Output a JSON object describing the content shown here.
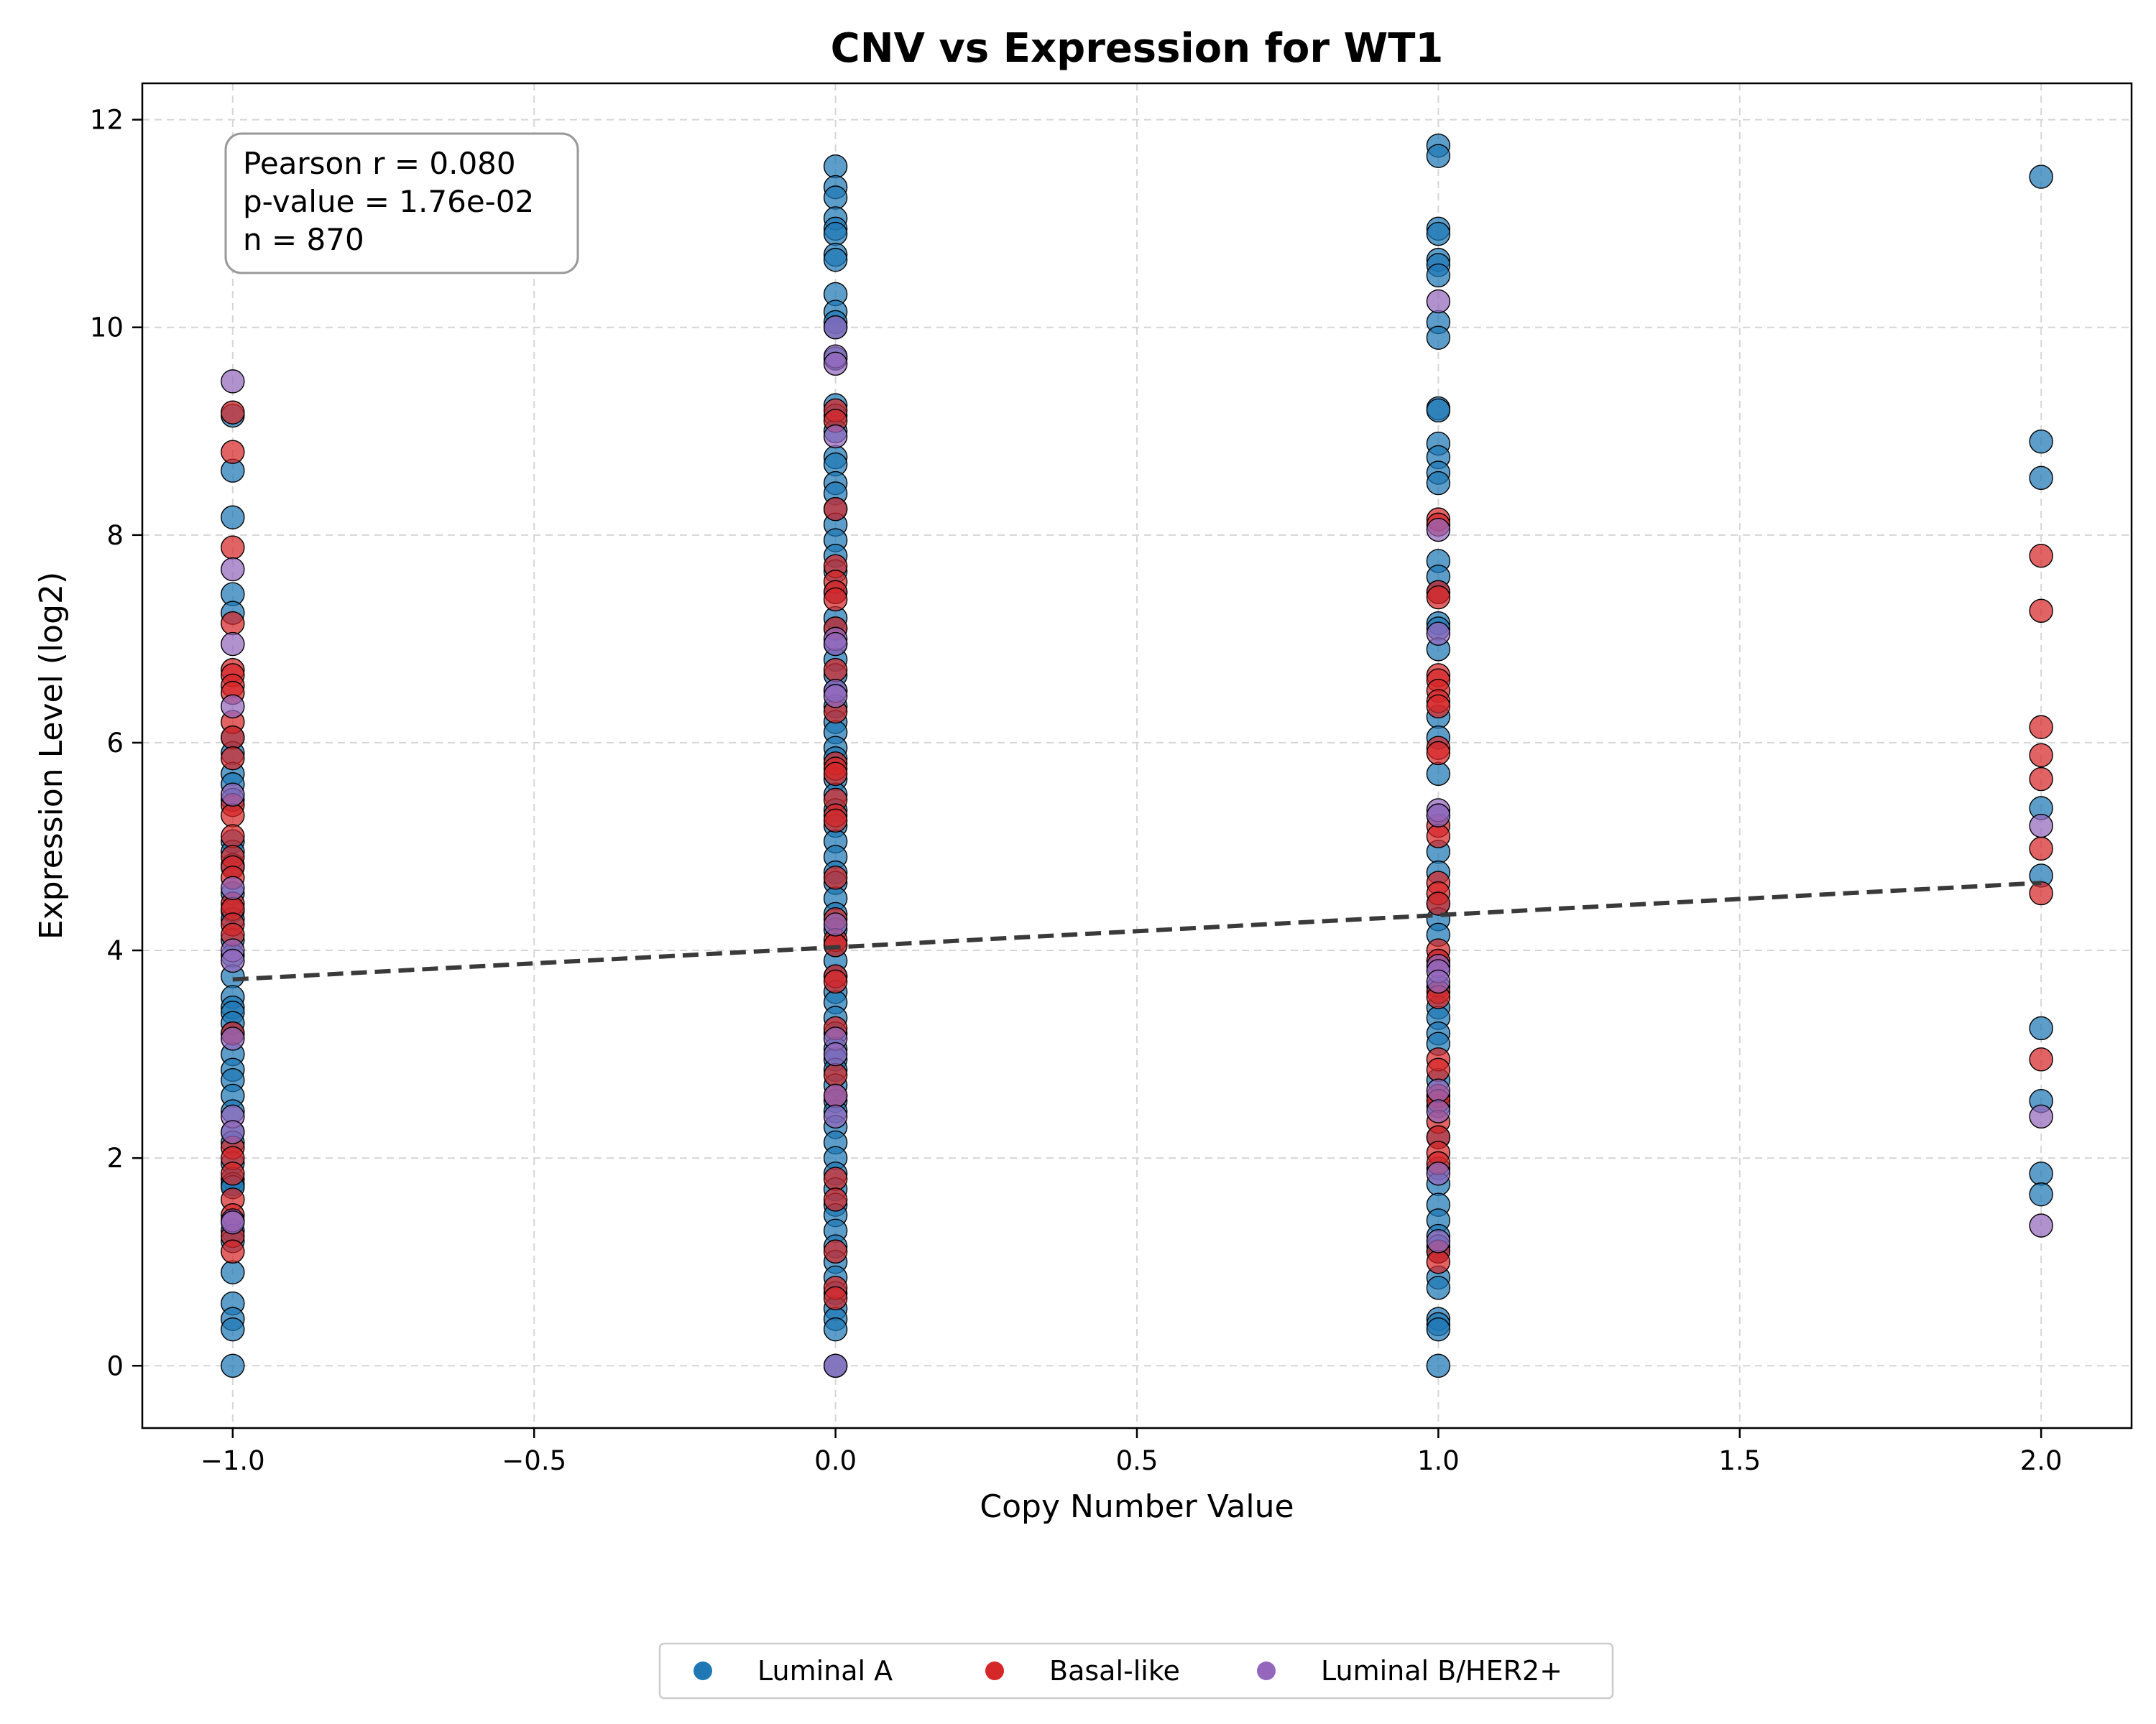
{
  "colors": {
    "luminal_a": "#1f77b4",
    "basal_like": "#d62728",
    "luminal_b_her2": "#9467bd",
    "trend": "#3a3a3a"
  },
  "stats": {
    "line1": "Pearson r = 0.080",
    "line2": "p-value = 1.76e-02",
    "line3": "n = 870"
  },
  "chart_data": {
    "type": "scatter",
    "title": "CNV vs Expression for WT1",
    "xlabel": "Copy Number Value",
    "ylabel": "Expression Level (log2)",
    "xlim": [
      -1.15,
      2.15
    ],
    "ylim": [
      -0.6,
      12.35
    ],
    "x_ticks": [
      -1.0,
      -0.5,
      0.0,
      0.5,
      1.0,
      1.5,
      2.0
    ],
    "x_tick_labels": [
      "−1.0",
      "−0.5",
      "0.0",
      "0.5",
      "1.0",
      "1.5",
      "2.0"
    ],
    "y_ticks": [
      0,
      2,
      4,
      6,
      8,
      10,
      12
    ],
    "y_tick_labels": [
      "0",
      "2",
      "4",
      "6",
      "8",
      "10",
      "12"
    ],
    "grid": true,
    "legend_position": "bottom-center",
    "trend_line": {
      "style": "dashed",
      "x": [
        -1.0,
        2.0
      ],
      "y": [
        3.72,
        4.65
      ]
    },
    "series": [
      {
        "name": "Luminal A",
        "color_key": "luminal_a",
        "points": [
          [
            -1,
            9.15
          ],
          [
            -1,
            8.62
          ],
          [
            -1,
            8.17
          ],
          [
            -1,
            7.43
          ],
          [
            -1,
            7.25
          ],
          [
            -1,
            6.05
          ],
          [
            -1,
            5.9
          ],
          [
            -1,
            5.7
          ],
          [
            -1,
            5.6
          ],
          [
            -1,
            5.45
          ],
          [
            -1,
            5.05
          ],
          [
            -1,
            4.95
          ],
          [
            -1,
            4.82
          ],
          [
            -1,
            4.55
          ],
          [
            -1,
            4.38
          ],
          [
            -1,
            4.3
          ],
          [
            -1,
            4.1
          ],
          [
            -1,
            3.95
          ],
          [
            -1,
            3.75
          ],
          [
            -1,
            3.55
          ],
          [
            -1,
            3.45
          ],
          [
            -1,
            3.4
          ],
          [
            -1,
            3.3
          ],
          [
            -1,
            3.2
          ],
          [
            -1,
            3.0
          ],
          [
            -1,
            2.85
          ],
          [
            -1,
            2.75
          ],
          [
            -1,
            2.6
          ],
          [
            -1,
            2.45
          ],
          [
            -1,
            2.25
          ],
          [
            -1,
            2.15
          ],
          [
            -1,
            1.95
          ],
          [
            -1,
            1.8
          ],
          [
            -1,
            1.75
          ],
          [
            -1,
            1.72
          ],
          [
            -1,
            1.3
          ],
          [
            -1,
            1.2
          ],
          [
            -1,
            0.9
          ],
          [
            -1,
            0.6
          ],
          [
            -1,
            0.45
          ],
          [
            -1,
            0.35
          ],
          [
            -1,
            0.0
          ],
          [
            0,
            11.55
          ],
          [
            0,
            11.35
          ],
          [
            0,
            11.25
          ],
          [
            0,
            11.05
          ],
          [
            0,
            10.95
          ],
          [
            0,
            10.9
          ],
          [
            0,
            10.7
          ],
          [
            0,
            10.65
          ],
          [
            0,
            10.32
          ],
          [
            0,
            10.15
          ],
          [
            0,
            10.05
          ],
          [
            0,
            10.0
          ],
          [
            0,
            9.7
          ],
          [
            0,
            9.25
          ],
          [
            0,
            9.15
          ],
          [
            0,
            9.0
          ],
          [
            0,
            8.75
          ],
          [
            0,
            8.68
          ],
          [
            0,
            8.5
          ],
          [
            0,
            8.4
          ],
          [
            0,
            8.25
          ],
          [
            0,
            8.1
          ],
          [
            0,
            7.95
          ],
          [
            0,
            7.8
          ],
          [
            0,
            7.65
          ],
          [
            0,
            7.45
          ],
          [
            0,
            7.2
          ],
          [
            0,
            7.1
          ],
          [
            0,
            6.95
          ],
          [
            0,
            6.8
          ],
          [
            0,
            6.65
          ],
          [
            0,
            6.5
          ],
          [
            0,
            6.35
          ],
          [
            0,
            6.2
          ],
          [
            0,
            6.1
          ],
          [
            0,
            5.95
          ],
          [
            0,
            5.85
          ],
          [
            0,
            5.65
          ],
          [
            0,
            5.5
          ],
          [
            0,
            5.35
          ],
          [
            0,
            5.2
          ],
          [
            0,
            5.05
          ],
          [
            0,
            4.9
          ],
          [
            0,
            4.75
          ],
          [
            0,
            4.65
          ],
          [
            0,
            4.5
          ],
          [
            0,
            4.35
          ],
          [
            0,
            4.2
          ],
          [
            0,
            4.05
          ],
          [
            0,
            3.9
          ],
          [
            0,
            3.75
          ],
          [
            0,
            3.6
          ],
          [
            0,
            3.5
          ],
          [
            0,
            3.35
          ],
          [
            0,
            3.2
          ],
          [
            0,
            3.05
          ],
          [
            0,
            2.95
          ],
          [
            0,
            2.85
          ],
          [
            0,
            2.7
          ],
          [
            0,
            2.55
          ],
          [
            0,
            2.45
          ],
          [
            0,
            2.3
          ],
          [
            0,
            2.15
          ],
          [
            0,
            2.0
          ],
          [
            0,
            1.85
          ],
          [
            0,
            1.7
          ],
          [
            0,
            1.55
          ],
          [
            0,
            1.45
          ],
          [
            0,
            1.3
          ],
          [
            0,
            1.15
          ],
          [
            0,
            1.0
          ],
          [
            0,
            0.85
          ],
          [
            0,
            0.7
          ],
          [
            0,
            0.55
          ],
          [
            0,
            0.45
          ],
          [
            0,
            0.35
          ],
          [
            0,
            0.0
          ],
          [
            1,
            11.75
          ],
          [
            1,
            11.65
          ],
          [
            1,
            10.95
          ],
          [
            1,
            10.9
          ],
          [
            1,
            10.65
          ],
          [
            1,
            10.6
          ],
          [
            1,
            10.5
          ],
          [
            1,
            10.05
          ],
          [
            1,
            9.9
          ],
          [
            1,
            9.22
          ],
          [
            1,
            9.2
          ],
          [
            1,
            8.88
          ],
          [
            1,
            8.75
          ],
          [
            1,
            8.6
          ],
          [
            1,
            8.5
          ],
          [
            1,
            7.75
          ],
          [
            1,
            7.6
          ],
          [
            1,
            7.45
          ],
          [
            1,
            7.15
          ],
          [
            1,
            7.1
          ],
          [
            1,
            6.9
          ],
          [
            1,
            6.25
          ],
          [
            1,
            6.05
          ],
          [
            1,
            5.7
          ],
          [
            1,
            5.3
          ],
          [
            1,
            4.95
          ],
          [
            1,
            4.75
          ],
          [
            1,
            4.45
          ],
          [
            1,
            4.3
          ],
          [
            1,
            4.15
          ],
          [
            1,
            3.9
          ],
          [
            1,
            3.65
          ],
          [
            1,
            3.45
          ],
          [
            1,
            3.35
          ],
          [
            1,
            3.2
          ],
          [
            1,
            3.1
          ],
          [
            1,
            2.75
          ],
          [
            1,
            2.5
          ],
          [
            1,
            2.2
          ],
          [
            1,
            1.9
          ],
          [
            1,
            1.75
          ],
          [
            1,
            1.55
          ],
          [
            1,
            1.4
          ],
          [
            1,
            1.25
          ],
          [
            1,
            1.15
          ],
          [
            1,
            1.1
          ],
          [
            1,
            0.85
          ],
          [
            1,
            0.75
          ],
          [
            1,
            0.45
          ],
          [
            1,
            0.4
          ],
          [
            1,
            0.35
          ],
          [
            1,
            0.0
          ],
          [
            2,
            11.45
          ],
          [
            2,
            8.9
          ],
          [
            2,
            8.55
          ],
          [
            2,
            5.37
          ],
          [
            2,
            4.72
          ],
          [
            2,
            3.25
          ],
          [
            2,
            2.55
          ],
          [
            2,
            1.85
          ],
          [
            2,
            1.65
          ]
        ]
      },
      {
        "name": "Basal-like",
        "color_key": "basal_like",
        "points": [
          [
            -1,
            9.18
          ],
          [
            -1,
            8.8
          ],
          [
            -1,
            7.88
          ],
          [
            -1,
            7.15
          ],
          [
            -1,
            6.7
          ],
          [
            -1,
            6.65
          ],
          [
            -1,
            6.55
          ],
          [
            -1,
            6.48
          ],
          [
            -1,
            6.2
          ],
          [
            -1,
            6.05
          ],
          [
            -1,
            5.85
          ],
          [
            -1,
            5.4
          ],
          [
            -1,
            5.3
          ],
          [
            -1,
            5.1
          ],
          [
            -1,
            4.9
          ],
          [
            -1,
            4.8
          ],
          [
            -1,
            4.7
          ],
          [
            -1,
            4.45
          ],
          [
            -1,
            4.4
          ],
          [
            -1,
            4.25
          ],
          [
            -1,
            4.15
          ],
          [
            -1,
            3.2
          ],
          [
            -1,
            2.1
          ],
          [
            -1,
            2.0
          ],
          [
            -1,
            1.85
          ],
          [
            -1,
            1.6
          ],
          [
            -1,
            1.45
          ],
          [
            -1,
            1.25
          ],
          [
            -1,
            1.1
          ],
          [
            0,
            9.2
          ],
          [
            0,
            9.1
          ],
          [
            0,
            8.25
          ],
          [
            0,
            7.7
          ],
          [
            0,
            7.55
          ],
          [
            0,
            7.45
          ],
          [
            0,
            7.38
          ],
          [
            0,
            7.1
          ],
          [
            0,
            6.7
          ],
          [
            0,
            6.3
          ],
          [
            0,
            5.8
          ],
          [
            0,
            5.75
          ],
          [
            0,
            5.7
          ],
          [
            0,
            5.45
          ],
          [
            0,
            5.3
          ],
          [
            0,
            5.25
          ],
          [
            0,
            4.7
          ],
          [
            0,
            4.3
          ],
          [
            0,
            4.1
          ],
          [
            0,
            4.05
          ],
          [
            0,
            3.75
          ],
          [
            0,
            3.7
          ],
          [
            0,
            3.25
          ],
          [
            0,
            2.8
          ],
          [
            0,
            2.6
          ],
          [
            0,
            1.8
          ],
          [
            0,
            1.6
          ],
          [
            0,
            1.1
          ],
          [
            0,
            0.75
          ],
          [
            0,
            0.65
          ],
          [
            1,
            8.15
          ],
          [
            1,
            8.1
          ],
          [
            1,
            7.45
          ],
          [
            1,
            7.4
          ],
          [
            1,
            6.65
          ],
          [
            1,
            6.6
          ],
          [
            1,
            6.5
          ],
          [
            1,
            6.4
          ],
          [
            1,
            6.35
          ],
          [
            1,
            5.95
          ],
          [
            1,
            5.9
          ],
          [
            1,
            5.2
          ],
          [
            1,
            5.1
          ],
          [
            1,
            4.65
          ],
          [
            1,
            4.55
          ],
          [
            1,
            4.45
          ],
          [
            1,
            4.0
          ],
          [
            1,
            3.9
          ],
          [
            1,
            3.6
          ],
          [
            1,
            3.55
          ],
          [
            1,
            2.95
          ],
          [
            1,
            2.85
          ],
          [
            1,
            2.6
          ],
          [
            1,
            2.55
          ],
          [
            1,
            2.35
          ],
          [
            1,
            2.2
          ],
          [
            1,
            2.05
          ],
          [
            1,
            1.95
          ],
          [
            1,
            1.1
          ],
          [
            1,
            1.0
          ],
          [
            2,
            7.8
          ],
          [
            2,
            7.27
          ],
          [
            2,
            6.15
          ],
          [
            2,
            5.88
          ],
          [
            2,
            5.65
          ],
          [
            2,
            4.98
          ],
          [
            2,
            4.55
          ],
          [
            2,
            2.95
          ]
        ]
      },
      {
        "name": "Luminal B/HER2+",
        "color_key": "luminal_b_her2",
        "points": [
          [
            -1,
            9.48
          ],
          [
            -1,
            7.67
          ],
          [
            -1,
            6.95
          ],
          [
            -1,
            6.35
          ],
          [
            -1,
            5.5
          ],
          [
            -1,
            4.6
          ],
          [
            -1,
            4.0
          ],
          [
            -1,
            3.9
          ],
          [
            -1,
            3.15
          ],
          [
            -1,
            2.4
          ],
          [
            -1,
            2.25
          ],
          [
            -1,
            1.4
          ],
          [
            -1,
            1.38
          ],
          [
            0,
            10.0
          ],
          [
            0,
            9.72
          ],
          [
            0,
            9.65
          ],
          [
            0,
            8.95
          ],
          [
            0,
            7.0
          ],
          [
            0,
            6.95
          ],
          [
            0,
            6.5
          ],
          [
            0,
            6.45
          ],
          [
            0,
            4.25
          ],
          [
            0,
            3.15
          ],
          [
            0,
            3.0
          ],
          [
            0,
            2.6
          ],
          [
            0,
            2.4
          ],
          [
            0,
            0.0
          ],
          [
            1,
            10.25
          ],
          [
            1,
            8.05
          ],
          [
            1,
            7.05
          ],
          [
            1,
            5.35
          ],
          [
            1,
            5.3
          ],
          [
            1,
            3.85
          ],
          [
            1,
            3.8
          ],
          [
            1,
            3.7
          ],
          [
            1,
            2.65
          ],
          [
            1,
            2.45
          ],
          [
            1,
            1.85
          ],
          [
            1,
            1.2
          ],
          [
            2,
            5.2
          ],
          [
            2,
            2.4
          ],
          [
            2,
            1.35
          ]
        ]
      }
    ]
  }
}
